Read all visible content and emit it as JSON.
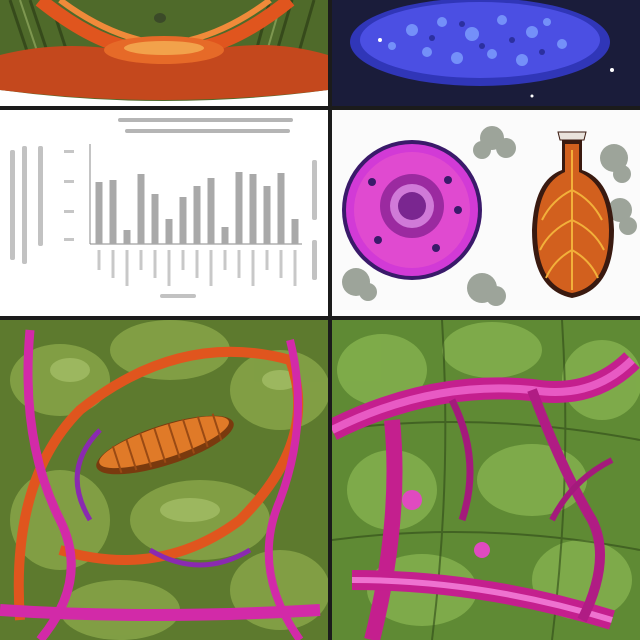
{
  "panels": [
    {
      "id": "top-left",
      "subject": "orange-branching-structure-on-green-ridges"
    },
    {
      "id": "top-right",
      "subject": "blue-glowing-cell-on-dark"
    },
    {
      "id": "mid-left",
      "subject": "gray-bar-chart-with-illegible-labels"
    },
    {
      "id": "mid-right",
      "subject": "purple-sphere-and-orange-pod-with-gray-clusters"
    },
    {
      "id": "bottom-left",
      "subject": "orange-segmented-body-in-magenta-vessels"
    },
    {
      "id": "bottom-right",
      "subject": "magenta-tube-network-on-green-cells"
    }
  ],
  "chart_data": {
    "type": "bar",
    "values": [
      0.62,
      0.64,
      0.14,
      0.7,
      0.5,
      0.25,
      0.47,
      0.58,
      0.66,
      0.17,
      0.72,
      0.7,
      0.58,
      0.71,
      0.25
    ],
    "ylim": [
      0,
      1
    ],
    "grid": false
  },
  "colors": {
    "bar": "#a9a9a9",
    "axis": "#888888",
    "orange": "#e0551e",
    "magenta": "#d22aa8",
    "green": "#6f8f3a",
    "blue": "#3f4ae0"
  }
}
